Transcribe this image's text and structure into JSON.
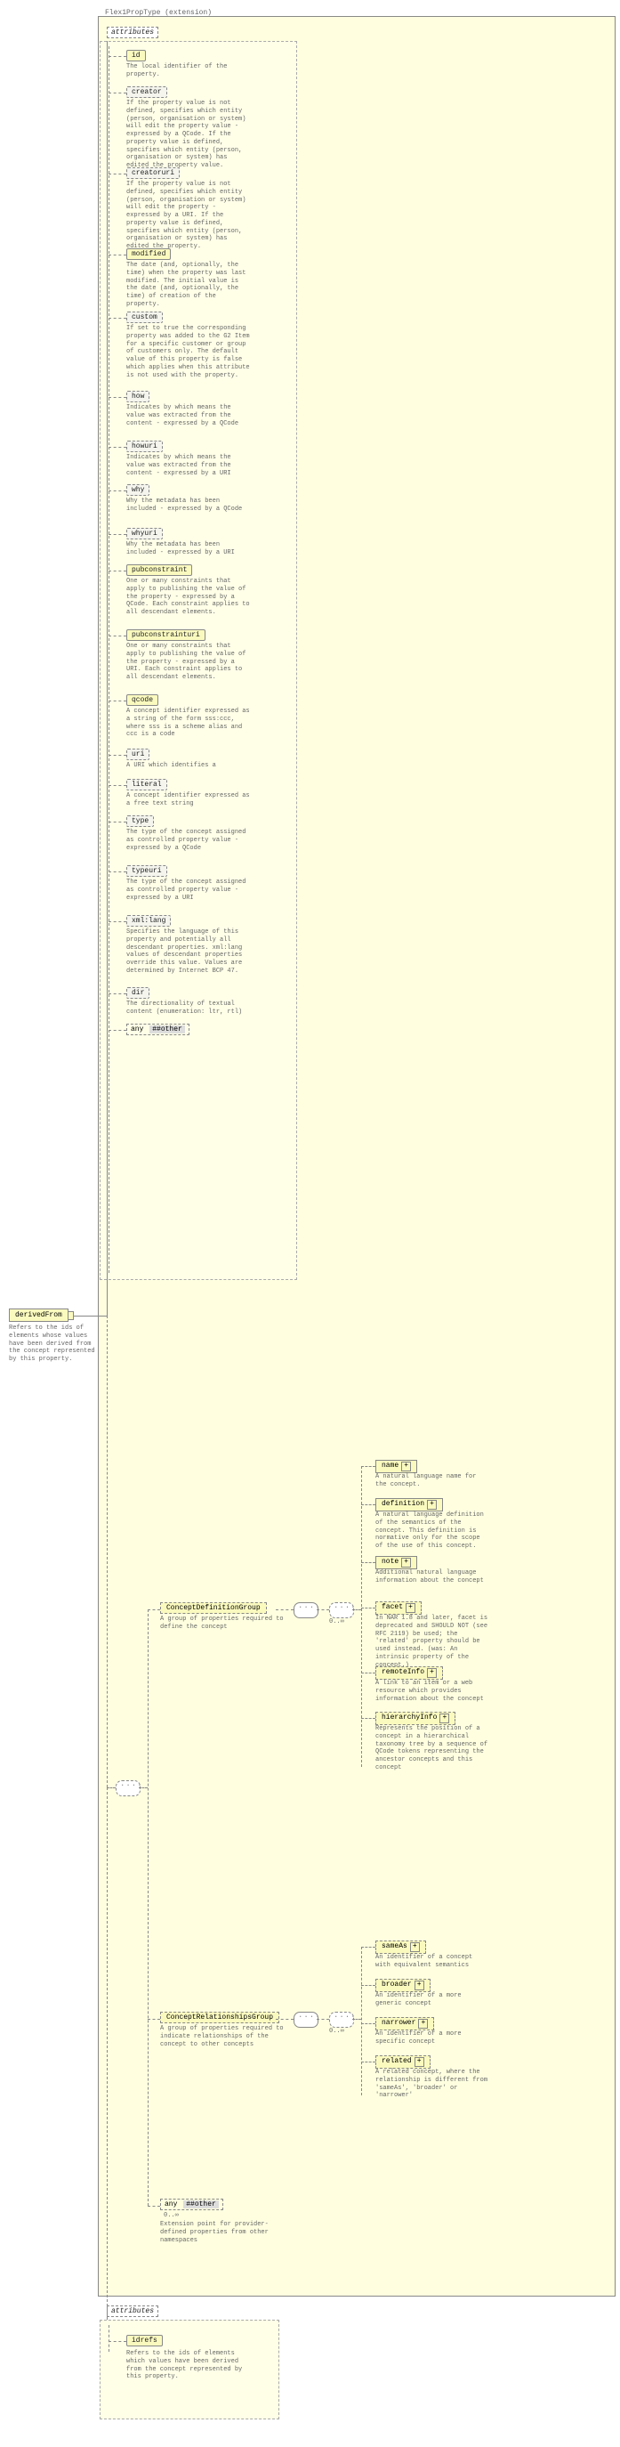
{
  "extension": {
    "label": "Flex1PropType (extension)"
  },
  "source": {
    "name": "derivedFrom",
    "desc": "Refers to the ids of elements whose values have been derived from the concept represented by this property."
  },
  "attr_header": "attributes",
  "attrs": [
    {
      "name": "id",
      "required": true,
      "desc": "The local identifier of the property.",
      "h": 20
    },
    {
      "name": "creator",
      "required": false,
      "desc": "If the property value is not defined, specifies which entity (person, organisation or system) will edit the property value - expressed by a QCode. If the property value is defined, specifies which entity (person, organisation or system) has edited the property value.",
      "h": 70
    },
    {
      "name": "creatoruri",
      "required": false,
      "desc": "If the property value is not defined, specifies which entity (person, organisation or system) will edit the property - expressed by a URI. If the property value is defined, specifies which entity (person, organisation or system) has edited the property.",
      "h": 70
    },
    {
      "name": "modified",
      "required": true,
      "desc": "The date (and, optionally, the time) when the property was last modified. The initial value is the date (and, optionally, the time) of creation of the property.",
      "h": 50
    },
    {
      "name": "custom",
      "required": false,
      "desc": "If set to true the corresponding property was added to the G2 Item for a specific customer or group of customers only. The default value of this property is false which applies when this attribute is not used with the property.",
      "h": 68
    },
    {
      "name": "how",
      "required": false,
      "desc": "Indicates by which means the value was extracted from the content - expressed by a QCode",
      "h": 35
    },
    {
      "name": "howuri",
      "required": false,
      "desc": "Indicates by which means the value was extracted from the content - expressed by a URI",
      "h": 28
    },
    {
      "name": "why",
      "required": false,
      "desc": "Why the metadata has been included - expressed by a QCode",
      "h": 28
    },
    {
      "name": "whyuri",
      "required": false,
      "desc": "Why the metadata has been included - expressed by a URI",
      "h": 20
    },
    {
      "name": "pubconstraint",
      "required": true,
      "desc": "One or many constraints that apply to publishing the value of the property - expressed by a QCode. Each constraint applies to all descendant elements.",
      "h": 52
    },
    {
      "name": "pubconstrainturi",
      "required": true,
      "desc": "One or many constraints that apply to publishing the value of the property - expressed by a URI. Each constraint applies to all descendant elements.",
      "h": 52
    },
    {
      "name": "qcode",
      "required": true,
      "desc": "A concept identifier expressed as a string of the form sss:ccc, where sss is a scheme alias and ccc is a code",
      "h": 40
    },
    {
      "name": "uri",
      "required": false,
      "desc": "A URI which identifies a",
      "h": 13
    },
    {
      "name": "literal",
      "required": false,
      "desc": "A concept identifier expressed as a free text string",
      "h": 20
    },
    {
      "name": "type",
      "required": false,
      "desc": "The type of the concept assigned as controlled property value - expressed by a QCode",
      "h": 35
    },
    {
      "name": "typeuri",
      "required": false,
      "desc": "The type of the concept assigned as controlled property value - expressed by a URI",
      "h": 35
    },
    {
      "name": "xml:lang",
      "required": false,
      "desc": "Specifies the language of this property and potentially all descendant properties. xml:lang values of descendant properties override this value. Values are determined by Internet BCP 47.",
      "h": 60
    },
    {
      "name": "dir",
      "required": false,
      "desc": "The directionality of textual content (enumeration: ltr, rtl)",
      "h": 20
    }
  ],
  "any_attr": {
    "label": "any",
    "ns": "##other"
  },
  "groups": {
    "def": {
      "name": "ConceptDefinitionGroup",
      "desc": "A group of properties required to define the concept",
      "card": "0..∞",
      "items": [
        {
          "name": "name",
          "opt": false,
          "expand": true,
          "desc": "A natural language name for the concept.",
          "h": 20
        },
        {
          "name": "definition",
          "opt": false,
          "expand": true,
          "desc": "A natural language definition of the semantics of the concept. This definition is normative only for the scope of the use of this concept.",
          "h": 42
        },
        {
          "name": "note",
          "opt": false,
          "expand": true,
          "desc": "Additional natural language information about the concept",
          "h": 28
        },
        {
          "name": "facet",
          "opt": true,
          "expand": true,
          "desc": "In NAR 1.8 and later, facet is deprecated and SHOULD NOT (see RFC 2119) be used; the 'related' property should be used instead. (was: An intrinsic property of the concept.)",
          "h": 50
        },
        {
          "name": "remoteInfo",
          "opt": true,
          "expand": true,
          "desc": "A link to an item or a web resource which provides information about the concept",
          "h": 28
        },
        {
          "name": "hierarchyInfo",
          "opt": true,
          "expand": true,
          "desc": "Represents the position of a concept in a hierarchical taxonomy tree by a sequence of QCode tokens representing the ancestor concepts and this concept",
          "h": 52
        }
      ]
    },
    "rel": {
      "name": "ConceptRelationshipsGroup",
      "desc": "A group of properties required to indicate relationships of the concept to other concepts",
      "card": "0..∞",
      "items": [
        {
          "name": "sameAs",
          "opt": true,
          "expand": true,
          "desc": "An identifier of a concept with equivalent semantics",
          "h": 20
        },
        {
          "name": "broader",
          "opt": true,
          "expand": true,
          "desc": "An identifier of a more generic concept",
          "h": 20
        },
        {
          "name": "narrower",
          "opt": true,
          "expand": true,
          "desc": "An identifier of a more specific concept",
          "h": 20
        },
        {
          "name": "related",
          "opt": true,
          "expand": true,
          "desc": "A related concept, where the relationship is different from 'sameAs', 'broader' or 'narrower'",
          "h": 35
        }
      ]
    }
  },
  "any_elt": {
    "label": "any",
    "ns": "##other",
    "card": "0..∞",
    "desc": "Extension point for provider-defined properties from other namespaces"
  },
  "attr2": {
    "header": "attributes",
    "name": "idrefs",
    "desc": "Refers to the ids of elements which values have been derived from the concept represented by this property."
  },
  "colors": {
    "bg": "#ffffe0"
  }
}
